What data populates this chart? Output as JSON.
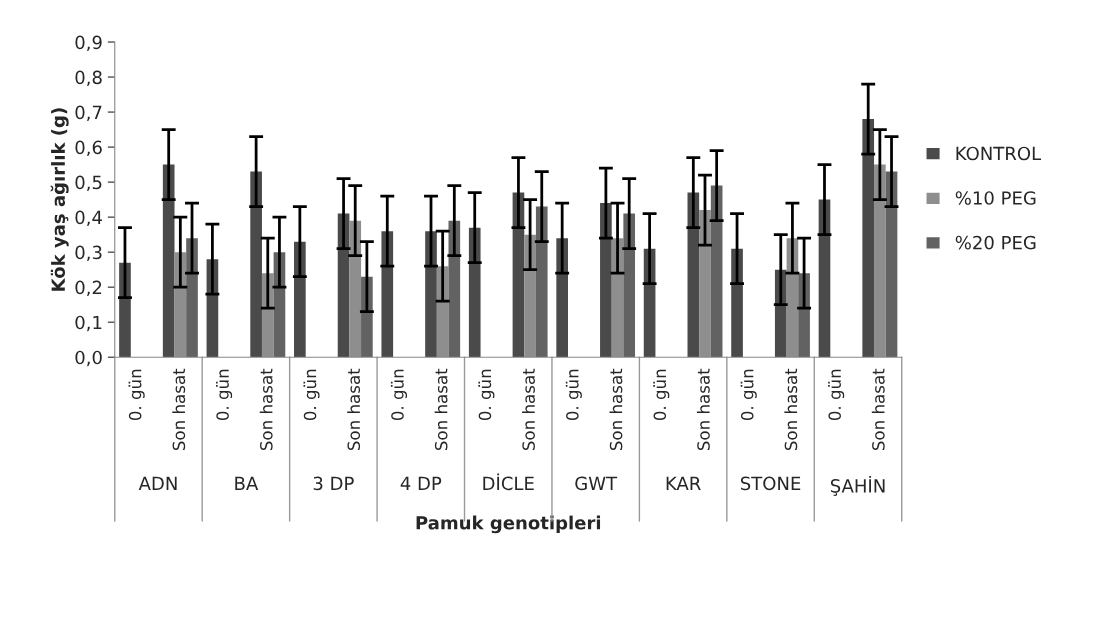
{
  "chart_data": {
    "type": "bar",
    "xlabel": "Pamuk genotipleri",
    "ylabel": "Kök yaş ağırlık (g)",
    "categories": [
      "0. gün",
      "Son hasat",
      "0. gün",
      "Son hasat",
      "0. gün",
      "Son hasat",
      "0. gün",
      "Son hasat",
      "0. gün",
      "Son hasat",
      "0. gün",
      "Son hasat",
      "0. gün",
      "Son hasat",
      "0. gün",
      "Son hasat",
      "0. gün",
      "Son hasat"
    ],
    "annotations": [
      "ADN",
      "BA",
      "3 DP",
      "4 DP",
      "DİCLE",
      "GWT",
      "KAR",
      "STONE",
      "ŞAHİN"
    ],
    "series": [
      {
        "name": "KONTROL",
        "color": "#4a4a4a",
        "values": [
          0.27,
          0.55,
          0.28,
          0.53,
          0.33,
          0.41,
          0.36,
          0.36,
          0.37,
          0.47,
          0.34,
          0.44,
          0.31,
          0.47,
          0.31,
          0.25,
          0.45,
          0.68
        ],
        "errors": [
          0.1,
          0.1,
          0.1,
          0.1,
          0.1,
          0.1,
          0.1,
          0.1,
          0.1,
          0.1,
          0.1,
          0.1,
          0.1,
          0.1,
          0.1,
          0.1,
          0.1,
          0.1
        ]
      },
      {
        "name": "%10 PEG",
        "color": "#8e8e8e",
        "values": [
          null,
          0.3,
          null,
          0.24,
          null,
          0.39,
          null,
          0.26,
          null,
          0.35,
          null,
          0.34,
          null,
          0.42,
          null,
          0.34,
          null,
          0.55
        ],
        "errors": [
          null,
          0.1,
          null,
          0.1,
          null,
          0.1,
          null,
          0.1,
          null,
          0.1,
          null,
          0.1,
          null,
          0.1,
          null,
          0.1,
          null,
          0.1
        ]
      },
      {
        "name": "%20 PEG",
        "color": "#626262",
        "values": [
          null,
          0.34,
          null,
          0.3,
          null,
          0.23,
          null,
          0.39,
          null,
          0.43,
          null,
          0.41,
          null,
          0.49,
          null,
          0.24,
          null,
          0.53
        ],
        "errors": [
          null,
          0.1,
          null,
          0.1,
          null,
          0.1,
          null,
          0.1,
          null,
          0.1,
          null,
          0.1,
          null,
          0.1,
          null,
          0.1,
          null,
          0.1
        ]
      }
    ],
    "ylim": [
      0,
      0.9
    ],
    "yticks": [
      {
        "value": 0,
        "label": "0,0"
      },
      {
        "value": 0.1,
        "label": "0,1"
      },
      {
        "value": 0.2,
        "label": "0,2"
      },
      {
        "value": 0.3,
        "label": "0,3"
      },
      {
        "value": 0.4,
        "label": "0,4"
      },
      {
        "value": 0.5,
        "label": "0,5"
      },
      {
        "value": 0.6,
        "label": "0,6"
      },
      {
        "value": 0.7,
        "label": "0,7"
      },
      {
        "value": 0.8,
        "label": "0,8"
      },
      {
        "value": 0.9,
        "label": "0,9"
      }
    ],
    "legend": "right"
  }
}
